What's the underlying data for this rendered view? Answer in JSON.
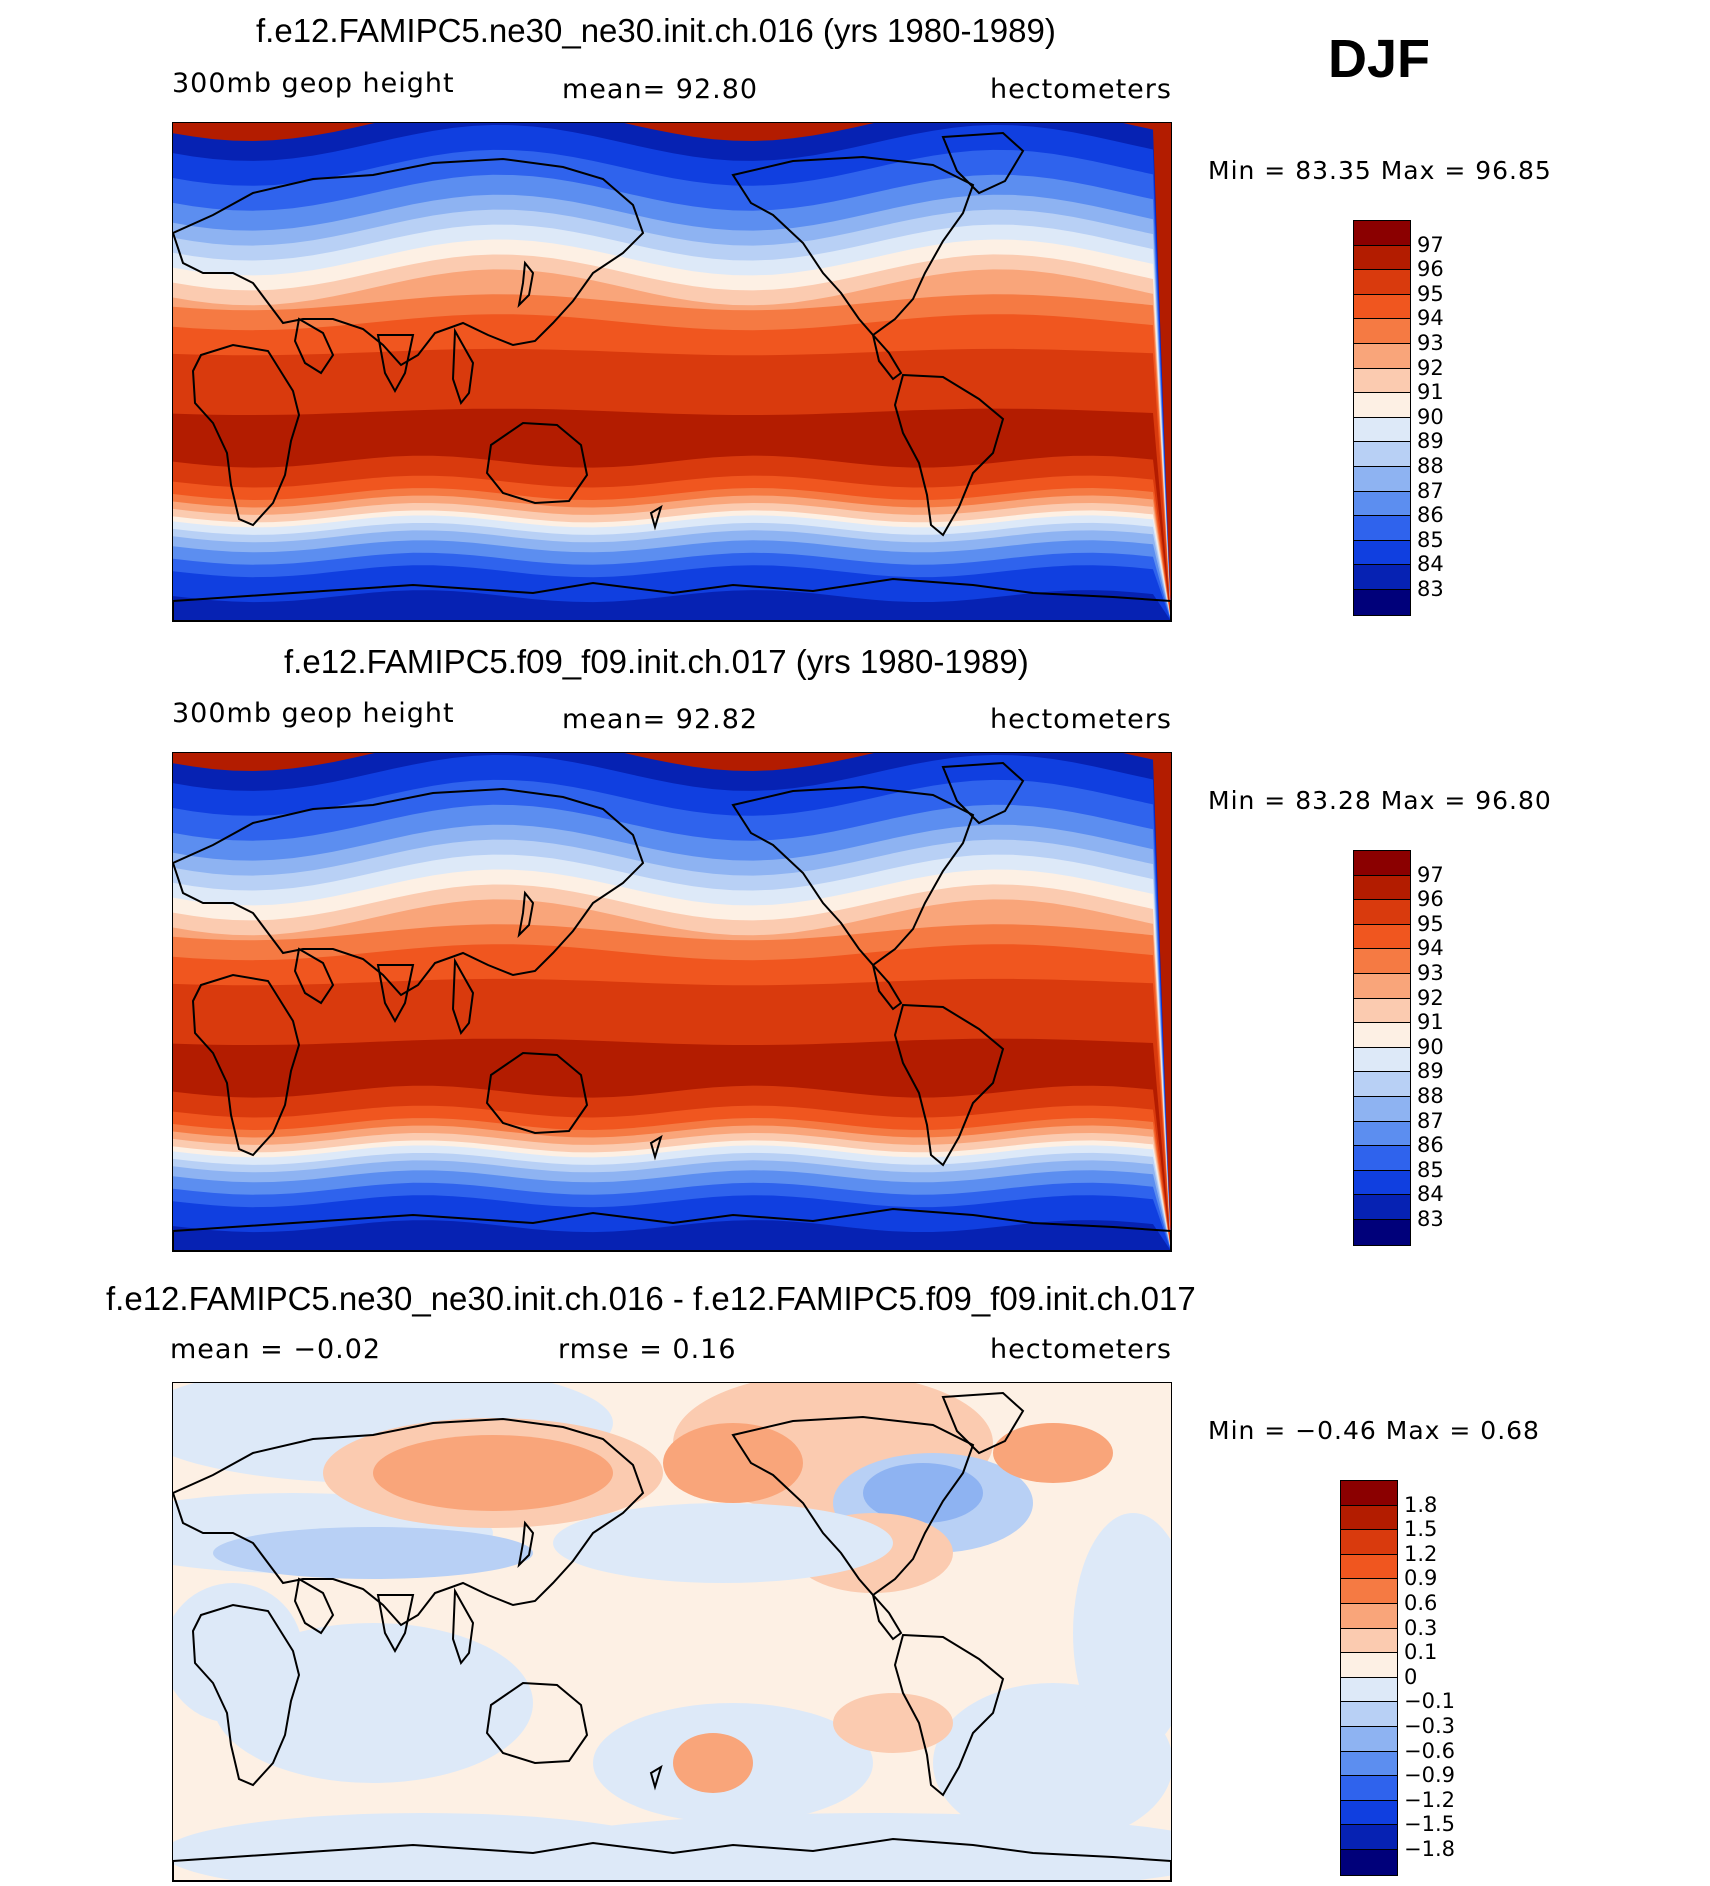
{
  "season": "DJF",
  "panels": [
    {
      "id": "p1",
      "title": "f.e12.FAMIPC5.ne30_ne30.init.ch.016 (yrs 1980-1989)",
      "left_label": "300mb  geop  height",
      "mid_label": "mean=   92.80",
      "right_label": "hectometers",
      "minmax": "Min  =    83.35  Max  =    96.85",
      "colorbar": {
        "labels": [
          "97",
          "96",
          "95",
          "94",
          "93",
          "92",
          "91",
          "90",
          "89",
          "88",
          "87",
          "86",
          "85",
          "84",
          "83"
        ],
        "colors": [
          "#8b0000",
          "#b31c00",
          "#d93a0d",
          "#f0561f",
          "#f57a43",
          "#f9a57a",
          "#fbcbb0",
          "#fdf0e4",
          "#dde9f8",
          "#b8d0f5",
          "#8eb3f2",
          "#5c8ef0",
          "#2f63ed",
          "#103fe0",
          "#0622b3",
          "#00007a"
        ]
      },
      "field": "geopotential height, 300mb, DJF"
    },
    {
      "id": "p2",
      "title": "f.e12.FAMIPC5.f09_f09.init.ch.017 (yrs 1980-1989)",
      "left_label": "300mb  geop  height",
      "mid_label": "mean=   92.82",
      "right_label": "hectometers",
      "minmax": "Min  =    83.28  Max  =    96.80",
      "colorbar": {
        "labels": [
          "97",
          "96",
          "95",
          "94",
          "93",
          "92",
          "91",
          "90",
          "89",
          "88",
          "87",
          "86",
          "85",
          "84",
          "83"
        ],
        "colors": [
          "#8b0000",
          "#b31c00",
          "#d93a0d",
          "#f0561f",
          "#f57a43",
          "#f9a57a",
          "#fbcbb0",
          "#fdf0e4",
          "#dde9f8",
          "#b8d0f5",
          "#8eb3f2",
          "#5c8ef0",
          "#2f63ed",
          "#103fe0",
          "#0622b3",
          "#00007a"
        ]
      },
      "field": "geopotential height, 300mb, DJF"
    },
    {
      "id": "p3",
      "title": "f.e12.FAMIPC5.ne30_ne30.init.ch.016 - f.e12.FAMIPC5.f09_f09.init.ch.017",
      "left_label": "mean  =    −0.02",
      "mid_label": "rmse  =     0.16",
      "right_label": "hectometers",
      "minmax": "Min  =    −0.46  Max  =      0.68",
      "colorbar": {
        "labels": [
          "1.8",
          "1.5",
          "1.2",
          "0.9",
          "0.6",
          "0.3",
          "0.1",
          "0",
          "−0.1",
          "−0.3",
          "−0.6",
          "−0.9",
          "−1.2",
          "−1.5",
          "−1.8"
        ],
        "colors": [
          "#8b0000",
          "#b31c00",
          "#d93a0d",
          "#f0561f",
          "#f57a43",
          "#f9a57a",
          "#fbcbb0",
          "#fdf0e4",
          "#dde9f8",
          "#b8d0f5",
          "#8eb3f2",
          "#5c8ef0",
          "#2f63ed",
          "#103fe0",
          "#0622b3",
          "#00007a"
        ]
      },
      "field": "difference"
    }
  ]
}
